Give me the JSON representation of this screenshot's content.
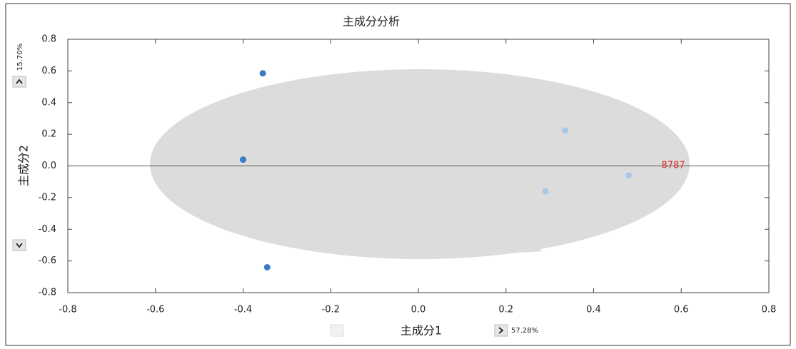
{
  "chart_data": {
    "type": "scatter",
    "title": "主成分分析",
    "x_label": "主成分1",
    "y_label": "主成分2",
    "x_variance": "57.28%",
    "y_variance": "15.70%",
    "annotation": "8787",
    "series": [
      {
        "color": "#3a7cc9",
        "x": [
          -0.355,
          -0.4,
          -0.345
        ],
        "values": [
          0.585,
          0.04,
          -0.64
        ]
      },
      {
        "color": "#a9c9ea",
        "x": [
          0.335,
          0.48,
          0.29
        ],
        "values": [
          0.225,
          -0.06,
          -0.16
        ]
      }
    ],
    "xlim": [
      -0.8,
      0.8
    ],
    "ylim": [
      -0.8,
      0.8
    ],
    "xticks": [
      -0.8,
      -0.6,
      -0.4,
      -0.2,
      {
        "value": 0,
        "label": "0.0"
      },
      0.2,
      0.4,
      0.6,
      0.8
    ],
    "yticks": [
      -0.8,
      -0.6,
      -0.4,
      -0.2,
      {
        "value": 0,
        "label": "0.0"
      },
      0.2,
      0.4,
      0.6,
      0.8
    ],
    "grid": false
  }
}
